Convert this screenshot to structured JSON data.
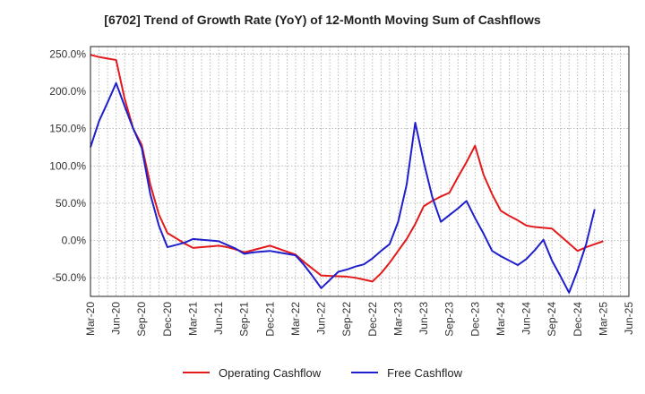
{
  "chart_data": {
    "type": "line",
    "title": "[6702]  Trend of Growth Rate (YoY) of 12-Month Moving Sum of Cashflows",
    "xlabel": "",
    "ylabel": "",
    "ylim": [
      -75,
      260
    ],
    "yticks": [
      250,
      200,
      150,
      100,
      50,
      0,
      -50
    ],
    "ytick_labels": [
      "250.0%",
      "200.0%",
      "150.0%",
      "100.0%",
      "50.0%",
      "0.0%",
      "-50.0%"
    ],
    "x": [
      "Mar-20",
      "Apr-20",
      "May-20",
      "Jun-20",
      "Jul-20",
      "Aug-20",
      "Sep-20",
      "Oct-20",
      "Nov-20",
      "Dec-20",
      "Jan-21",
      "Feb-21",
      "Mar-21",
      "Apr-21",
      "May-21",
      "Jun-21",
      "Jul-21",
      "Aug-21",
      "Sep-21",
      "Oct-21",
      "Nov-21",
      "Dec-21",
      "Jan-22",
      "Feb-22",
      "Mar-22",
      "Apr-22",
      "May-22",
      "Jun-22",
      "Jul-22",
      "Aug-22",
      "Sep-22",
      "Oct-22",
      "Nov-22",
      "Dec-22",
      "Jan-23",
      "Feb-23",
      "Mar-23",
      "Apr-23",
      "May-23",
      "Jun-23",
      "Jul-23",
      "Aug-23",
      "Sep-23",
      "Oct-23",
      "Nov-23",
      "Dec-23",
      "Jan-24",
      "Feb-24",
      "Mar-24",
      "Apr-24",
      "May-24",
      "Jun-24",
      "Jul-24",
      "Aug-24",
      "Sep-24",
      "Oct-24",
      "Nov-24",
      "Dec-24",
      "Jan-25",
      "Feb-25",
      "Mar-25",
      "Apr-25",
      "May-25",
      "Jun-25"
    ],
    "xtick_labels": [
      "Mar-20",
      "Jun-20",
      "Sep-20",
      "Dec-20",
      "Mar-21",
      "Jun-21",
      "Sep-21",
      "Dec-21",
      "Mar-22",
      "Jun-22",
      "Sep-22",
      "Dec-22",
      "Mar-23",
      "Jun-23",
      "Sep-23",
      "Dec-23",
      "Mar-24",
      "Jun-24",
      "Sep-24",
      "Dec-24",
      "Mar-25",
      "Jun-25"
    ],
    "grid": true,
    "legend_position": "bottom",
    "series": [
      {
        "name": "Operating Cashflow",
        "color": "#e31a1c",
        "values": [
          249,
          246,
          244,
          242,
          190,
          150,
          128,
          75,
          35,
          10,
          3,
          -4,
          -10,
          -9,
          -8,
          -7,
          -9,
          -12,
          -16,
          -13,
          -10,
          -7,
          -11,
          -15,
          -19,
          -29,
          -38,
          -47,
          -47.5,
          -48,
          -48.5,
          -50,
          -52.5,
          -55,
          -44,
          -30,
          -14,
          2,
          22,
          46,
          53,
          59,
          64,
          85,
          105,
          127,
          88,
          62,
          40,
          33,
          27,
          20,
          18,
          17,
          16,
          6,
          -4,
          -14,
          -9,
          -5,
          -1,
          null,
          null,
          null
        ]
      },
      {
        "name": "Free Cashflow",
        "color": "#1f1fcc",
        "values": [
          125,
          160,
          185,
          211,
          180,
          150,
          124,
          62,
          20,
          -9,
          -6,
          -3,
          2,
          1,
          0,
          -1,
          -6,
          -11,
          -18,
          -16,
          -15,
          -14,
          -16,
          -18,
          -20,
          -33,
          -48,
          -64,
          -53,
          -42,
          -39,
          -35,
          -32,
          -24,
          -14,
          -5,
          25,
          75,
          158,
          105,
          58,
          25,
          34,
          43,
          53,
          30,
          9,
          -14,
          -21,
          -27,
          -33,
          -25,
          -13,
          1,
          -27,
          -48,
          -70,
          -40,
          -5,
          42,
          null,
          null,
          null,
          null
        ]
      }
    ]
  }
}
